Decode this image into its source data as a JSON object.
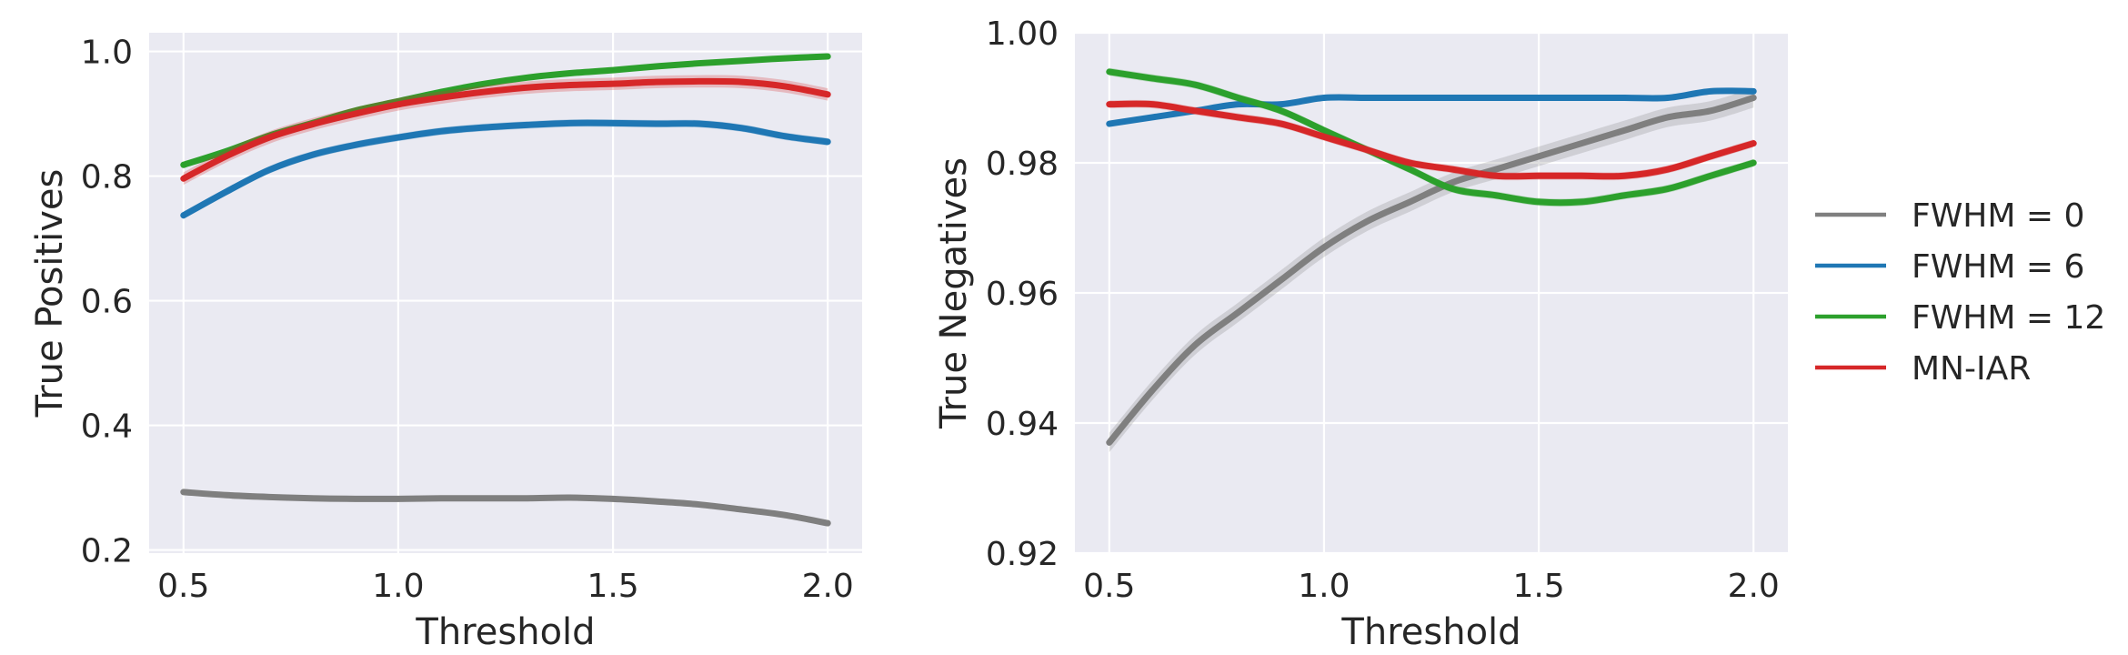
{
  "chart_data": [
    {
      "type": "line",
      "title": "",
      "xlabel": "Threshold",
      "ylabel": "True Positives",
      "xlim": [
        0.42,
        2.08
      ],
      "ylim": [
        0.195,
        1.03
      ],
      "xticks": [
        0.5,
        1.0,
        1.5,
        2.0
      ],
      "xtick_labels": [
        "0.5",
        "1.0",
        "1.5",
        "2.0"
      ],
      "yticks": [
        0.2,
        0.4,
        0.6,
        0.8,
        1.0
      ],
      "ytick_labels": [
        "0.2",
        "0.4",
        "0.6",
        "0.8",
        "1.0"
      ],
      "grid": true,
      "x": [
        0.5,
        0.6,
        0.7,
        0.8,
        0.9,
        1.0,
        1.1,
        1.2,
        1.3,
        1.4,
        1.5,
        1.6,
        1.7,
        1.8,
        1.9,
        2.0
      ],
      "series": [
        {
          "name": "FWHM = 0",
          "color": "#7f7f7f",
          "values": [
            0.293,
            0.288,
            0.285,
            0.283,
            0.282,
            0.282,
            0.283,
            0.283,
            0.283,
            0.284,
            0.282,
            0.278,
            0.273,
            0.265,
            0.256,
            0.243
          ],
          "band": 0.004
        },
        {
          "name": "FWHM = 6",
          "color": "#1f77b4",
          "values": [
            0.737,
            0.775,
            0.81,
            0.834,
            0.85,
            0.862,
            0.872,
            0.878,
            0.882,
            0.885,
            0.885,
            0.884,
            0.884,
            0.877,
            0.864,
            0.855
          ],
          "band": 0.006
        },
        {
          "name": "FWHM = 12",
          "color": "#2ca02c",
          "values": [
            0.818,
            0.84,
            0.865,
            0.885,
            0.905,
            0.92,
            0.935,
            0.948,
            0.958,
            0.965,
            0.97,
            0.976,
            0.981,
            0.985,
            0.989,
            0.992
          ],
          "band": 0.003
        },
        {
          "name": "MN-IAR",
          "color": "#d62728",
          "values": [
            0.796,
            0.832,
            0.862,
            0.883,
            0.9,
            0.915,
            0.926,
            0.935,
            0.942,
            0.946,
            0.948,
            0.951,
            0.952,
            0.951,
            0.944,
            0.931
          ],
          "band": 0.01
        }
      ]
    },
    {
      "type": "line",
      "title": "",
      "xlabel": "Threshold",
      "ylabel": "True Negatives",
      "xlim": [
        0.42,
        2.08
      ],
      "ylim": [
        0.92,
        1.0
      ],
      "xticks": [
        0.5,
        1.0,
        1.5,
        2.0
      ],
      "xtick_labels": [
        "0.5",
        "1.0",
        "1.5",
        "2.0"
      ],
      "yticks": [
        0.92,
        0.94,
        0.96,
        0.98,
        1.0
      ],
      "ytick_labels": [
        "0.92",
        "0.94",
        "0.96",
        "0.98",
        "1.00"
      ],
      "grid": true,
      "x": [
        0.5,
        0.6,
        0.7,
        0.8,
        0.9,
        1.0,
        1.1,
        1.2,
        1.3,
        1.4,
        1.5,
        1.6,
        1.7,
        1.8,
        1.9,
        2.0
      ],
      "series": [
        {
          "name": "FWHM = 0",
          "color": "#7f7f7f",
          "values": [
            0.937,
            0.945,
            0.952,
            0.957,
            0.962,
            0.967,
            0.971,
            0.974,
            0.977,
            0.979,
            0.981,
            0.983,
            0.985,
            0.987,
            0.988,
            0.99
          ],
          "band": 0.0015
        },
        {
          "name": "FWHM = 6",
          "color": "#1f77b4",
          "values": [
            0.986,
            0.987,
            0.988,
            0.989,
            0.989,
            0.99,
            0.99,
            0.99,
            0.99,
            0.99,
            0.99,
            0.99,
            0.99,
            0.99,
            0.991,
            0.991
          ],
          "band": 0.0004
        },
        {
          "name": "FWHM = 12",
          "color": "#2ca02c",
          "values": [
            0.994,
            0.993,
            0.992,
            0.99,
            0.988,
            0.985,
            0.982,
            0.979,
            0.976,
            0.975,
            0.974,
            0.974,
            0.975,
            0.976,
            0.978,
            0.98
          ],
          "band": 0.0006
        },
        {
          "name": "MN-IAR",
          "color": "#d62728",
          "values": [
            0.989,
            0.989,
            0.988,
            0.987,
            0.986,
            0.984,
            0.982,
            0.98,
            0.979,
            0.978,
            0.978,
            0.978,
            0.978,
            0.979,
            0.981,
            0.983
          ],
          "band": 0.0006
        }
      ]
    }
  ],
  "legend": {
    "placement": "right",
    "entries": [
      {
        "label": "FWHM = 0",
        "color": "#7f7f7f"
      },
      {
        "label": "FWHM = 6",
        "color": "#1f77b4"
      },
      {
        "label": "FWHM = 12",
        "color": "#2ca02c"
      },
      {
        "label": "MN-IAR",
        "color": "#d62728"
      }
    ]
  },
  "colors": {
    "plot_background": "#eaeaf2",
    "grid": "#ffffff",
    "text": "#262626"
  }
}
